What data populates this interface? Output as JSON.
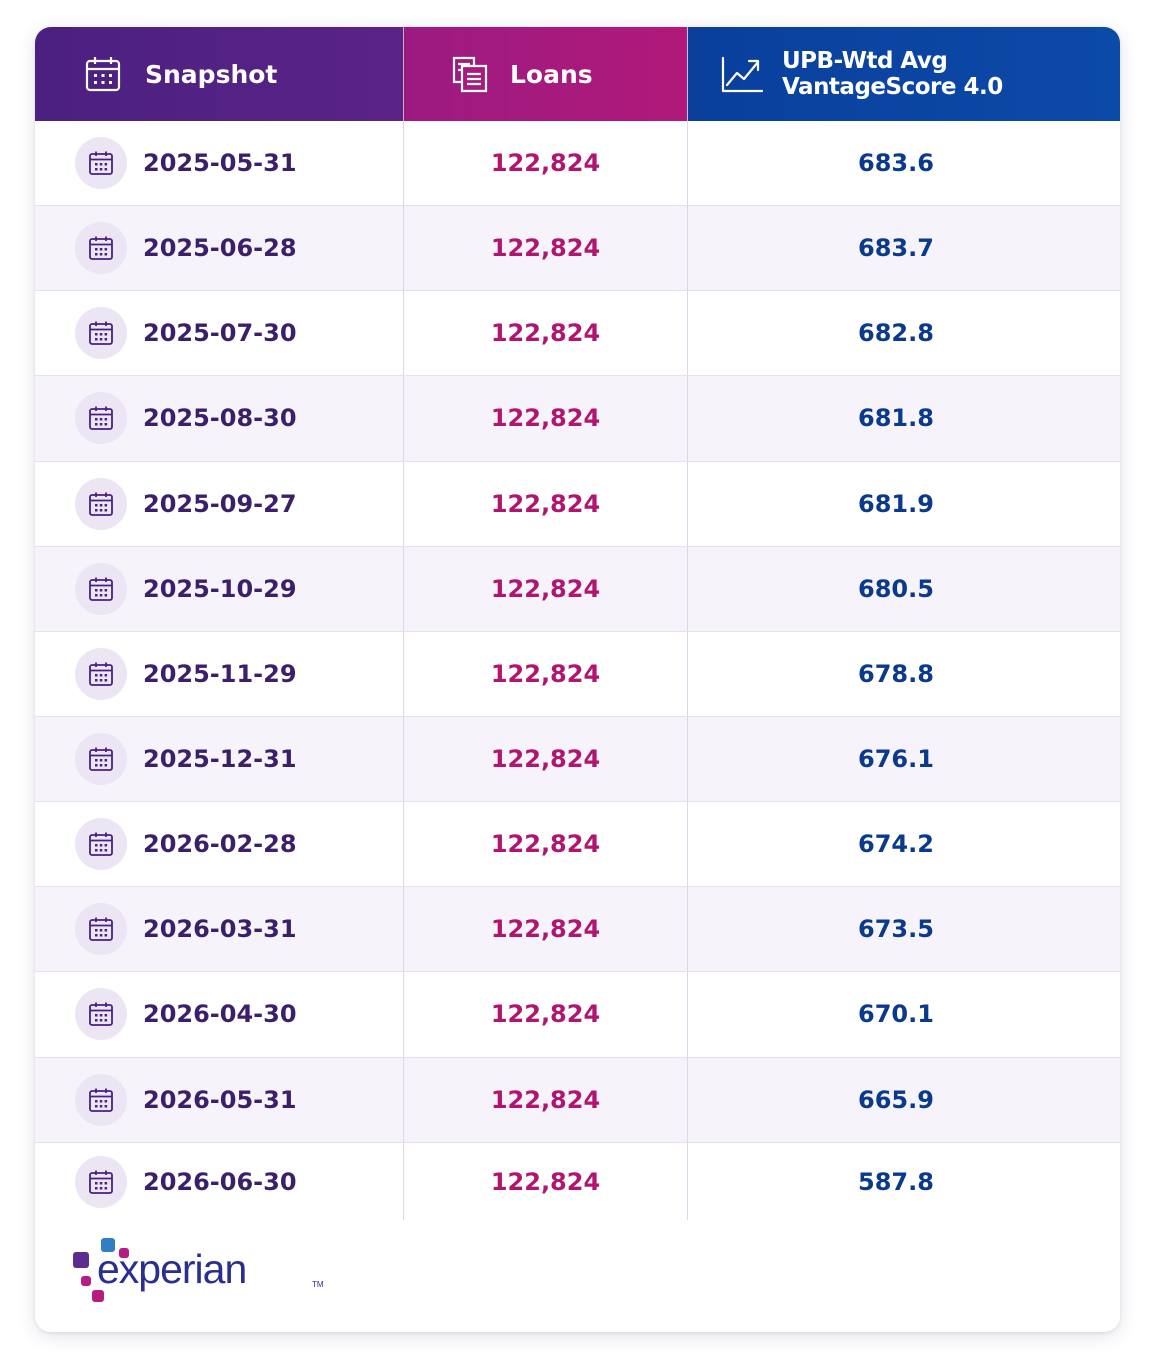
{
  "header": {
    "snapshot_label": "Snapshot",
    "loans_label": "Loans",
    "score_label": "UPB-Wtd Avg VantageScore 4.0"
  },
  "icons": {
    "snapshot_header": "calendar-icon",
    "loans_header": "documents-icon",
    "score_header": "trend-up-icon",
    "row": "calendar-icon"
  },
  "rows": [
    {
      "date": "2025-05-31",
      "loans": "122,824",
      "score": "683.6"
    },
    {
      "date": "2025-06-28",
      "loans": "122,824",
      "score": "683.7"
    },
    {
      "date": "2025-07-30",
      "loans": "122,824",
      "score": "682.8"
    },
    {
      "date": "2025-08-30",
      "loans": "122,824",
      "score": "681.8"
    },
    {
      "date": "2025-09-27",
      "loans": "122,824",
      "score": "681.9"
    },
    {
      "date": "2025-10-29",
      "loans": "122,824",
      "score": "680.5"
    },
    {
      "date": "2025-11-29",
      "loans": "122,824",
      "score": "678.8"
    },
    {
      "date": "2025-12-31",
      "loans": "122,824",
      "score": "676.1"
    },
    {
      "date": "2026-02-28",
      "loans": "122,824",
      "score": "674.2"
    },
    {
      "date": "2026-03-31",
      "loans": "122,824",
      "score": "673.5"
    },
    {
      "date": "2026-04-30",
      "loans": "122,824",
      "score": "670.1"
    },
    {
      "date": "2026-05-31",
      "loans": "122,824",
      "score": "665.9"
    },
    {
      "date": "2026-06-30",
      "loans": "122,824",
      "score": "587.8"
    }
  ],
  "footer": {
    "logo_text": "experian",
    "logo_tm": "TM"
  },
  "colors": {
    "snapshot_header": "#4b2080",
    "loans_header": "#b0197a",
    "score_header": "#0c4aa8",
    "date_text": "#3b1f6b",
    "loans_text": "#b0166f",
    "score_text": "#0b3a8c"
  }
}
